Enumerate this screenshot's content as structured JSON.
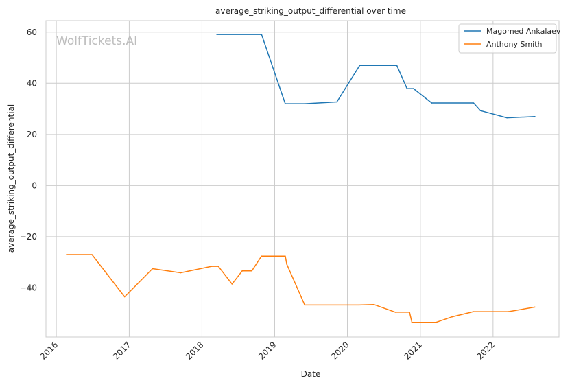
{
  "chart_data": {
    "type": "line",
    "title": "average_striking_output_differential over time",
    "xlabel": "Date",
    "ylabel": "average_striking_output_differential",
    "watermark": "WolfTickets.AI",
    "xlim": [
      "2015-11-10",
      "2022-11-28"
    ],
    "ylim": [
      -59.2,
      64.5
    ],
    "x_ticks": [
      "2016",
      "2017",
      "2018",
      "2019",
      "2020",
      "2021",
      "2022"
    ],
    "y_ticks": [
      60,
      40,
      20,
      0,
      -20,
      -40
    ],
    "grid": true,
    "legend_position": "top-right",
    "series": [
      {
        "name": "Magomed Ankalaev",
        "color": "#1f77b4",
        "points": [
          [
            "2018-03-17",
            59.1
          ],
          [
            "2018-10-27",
            59.1
          ],
          [
            "2019-02-23",
            32.0
          ],
          [
            "2019-06-01",
            32.0
          ],
          [
            "2019-11-09",
            32.7
          ],
          [
            "2020-03-03",
            47.0
          ],
          [
            "2020-09-05",
            47.0
          ],
          [
            "2020-10-26",
            37.9
          ],
          [
            "2020-11-28",
            37.9
          ],
          [
            "2021-02-27",
            32.3
          ],
          [
            "2021-09-25",
            32.3
          ],
          [
            "2021-10-30",
            29.3
          ],
          [
            "2022-03-12",
            26.5
          ],
          [
            "2022-07-30",
            27.0
          ]
        ]
      },
      {
        "name": "Anthony Smith",
        "color": "#ff7f0e",
        "points": [
          [
            "2016-02-21",
            -27.0
          ],
          [
            "2016-06-28",
            -27.0
          ],
          [
            "2016-12-09",
            -43.5
          ],
          [
            "2017-04-28",
            -32.5
          ],
          [
            "2017-09-16",
            -34.1
          ],
          [
            "2018-02-18",
            -31.6
          ],
          [
            "2018-03-24",
            -31.6
          ],
          [
            "2018-06-01",
            -38.5
          ],
          [
            "2018-07-22",
            -33.4
          ],
          [
            "2018-09-08",
            -33.4
          ],
          [
            "2018-10-27",
            -27.6
          ],
          [
            "2019-02-23",
            -27.6
          ],
          [
            "2019-03-03",
            -30.8
          ],
          [
            "2019-06-01",
            -46.7
          ],
          [
            "2020-02-28",
            -46.7
          ],
          [
            "2020-05-13",
            -46.5
          ],
          [
            "2020-08-29",
            -49.5
          ],
          [
            "2020-11-08",
            -49.5
          ],
          [
            "2020-11-20",
            -53.5
          ],
          [
            "2021-03-20",
            -53.5
          ],
          [
            "2021-06-10",
            -51.3
          ],
          [
            "2021-09-24",
            -49.3
          ],
          [
            "2022-03-19",
            -49.3
          ],
          [
            "2022-07-30",
            -47.5
          ]
        ]
      }
    ]
  }
}
